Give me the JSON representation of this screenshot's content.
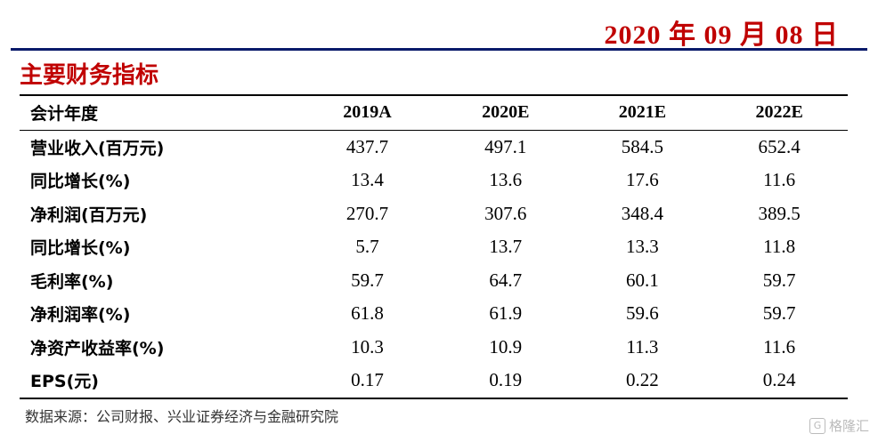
{
  "date": "2020 年 09 月 08 日",
  "title": "主要财务指标",
  "table": {
    "header": [
      "会计年度",
      "2019A",
      "2020E",
      "2021E",
      "2022E"
    ],
    "rows": [
      [
        "营业收入(百万元)",
        "437.7",
        "497.1",
        "584.5",
        "652.4"
      ],
      [
        "同比增长(%)",
        "13.4",
        "13.6",
        "17.6",
        "11.6"
      ],
      [
        "净利润(百万元)",
        "270.7",
        "307.6",
        "348.4",
        "389.5"
      ],
      [
        "同比增长(%)",
        "5.7",
        "13.7",
        "13.3",
        "11.8"
      ],
      [
        "毛利率(%)",
        "59.7",
        "64.7",
        "60.1",
        "59.7"
      ],
      [
        "净利润率(%)",
        "61.8",
        "61.9",
        "59.6",
        "59.7"
      ],
      [
        "净资产收益率(%)",
        "10.3",
        "10.9",
        "11.3",
        "11.6"
      ],
      [
        "EPS(元)",
        "0.17",
        "0.19",
        "0.22",
        "0.24"
      ]
    ]
  },
  "source": "数据来源：公司财报、兴业证券经济与金融研究院",
  "watermark": {
    "logo": "G",
    "text": "格隆汇"
  },
  "colors": {
    "accent": "#c00000",
    "rule": "#0a1a6a"
  }
}
